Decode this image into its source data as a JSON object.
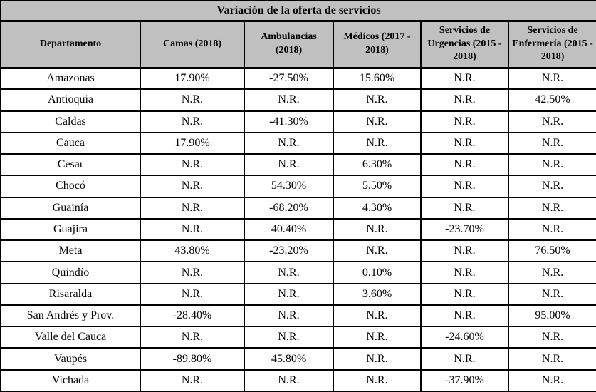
{
  "chart_data": {
    "type": "table",
    "title": "Variación de la oferta de servicios",
    "columns": [
      "Departamento",
      "Camas (2018)",
      "Ambulancias (2018)",
      "Médicos (2017 - 2018)",
      "Servicios de Urgencias (2015 - 2018)",
      "Servicios de Enfermería (2015 - 2018)"
    ],
    "rows": [
      [
        "Amazonas",
        "17.90%",
        "-27.50%",
        "15.60%",
        "N.R.",
        "N.R."
      ],
      [
        "Antioquia",
        "N.R.",
        "N.R.",
        "N.R.",
        "N.R.",
        "42.50%"
      ],
      [
        "Caldas",
        "N.R.",
        "-41.30%",
        "N.R.",
        "N.R.",
        "N.R."
      ],
      [
        "Cauca",
        "17.90%",
        "N.R.",
        "N.R.",
        "N.R.",
        "N.R."
      ],
      [
        "Cesar",
        "N.R.",
        "N.R.",
        "6.30%",
        "N.R.",
        "N.R."
      ],
      [
        "Chocó",
        "N.R.",
        "54.30%",
        "5.50%",
        "N.R.",
        "N.R."
      ],
      [
        "Guainía",
        "N.R.",
        "-68.20%",
        "4.30%",
        "N.R.",
        "N.R."
      ],
      [
        "Guajira",
        "N.R.",
        "40.40%",
        "N.R.",
        "-23.70%",
        "N.R."
      ],
      [
        "Meta",
        "43.80%",
        "-23.20%",
        "N.R.",
        "N.R.",
        "76.50%"
      ],
      [
        "Quindío",
        "N.R.",
        "N.R.",
        "0.10%",
        "N.R.",
        "N.R."
      ],
      [
        "Risaralda",
        "N.R.",
        "N.R.",
        "3.60%",
        "N.R.",
        "N.R."
      ],
      [
        "San Andrés y Prov.",
        "-28.40%",
        "N.R.",
        "N.R.",
        "N.R.",
        "95.00%"
      ],
      [
        "Valle del Cauca",
        "N.R.",
        "N.R.",
        "N.R.",
        "-24.60%",
        "N.R."
      ],
      [
        "Vaupés",
        "-89.80%",
        "45.80%",
        "N.R.",
        "N.R.",
        "N.R."
      ],
      [
        "Vichada",
        "N.R.",
        "N.R.",
        "N.R.",
        "-37.90%",
        "N.R."
      ]
    ],
    "missing_value_label": "N.R.",
    "colors": {
      "header_bg": "#c0c0c0",
      "border": "#000000",
      "row_bg": "#ffffff",
      "text": "#000000"
    },
    "layout": {
      "legend": "none",
      "grid": "full table borders"
    }
  }
}
